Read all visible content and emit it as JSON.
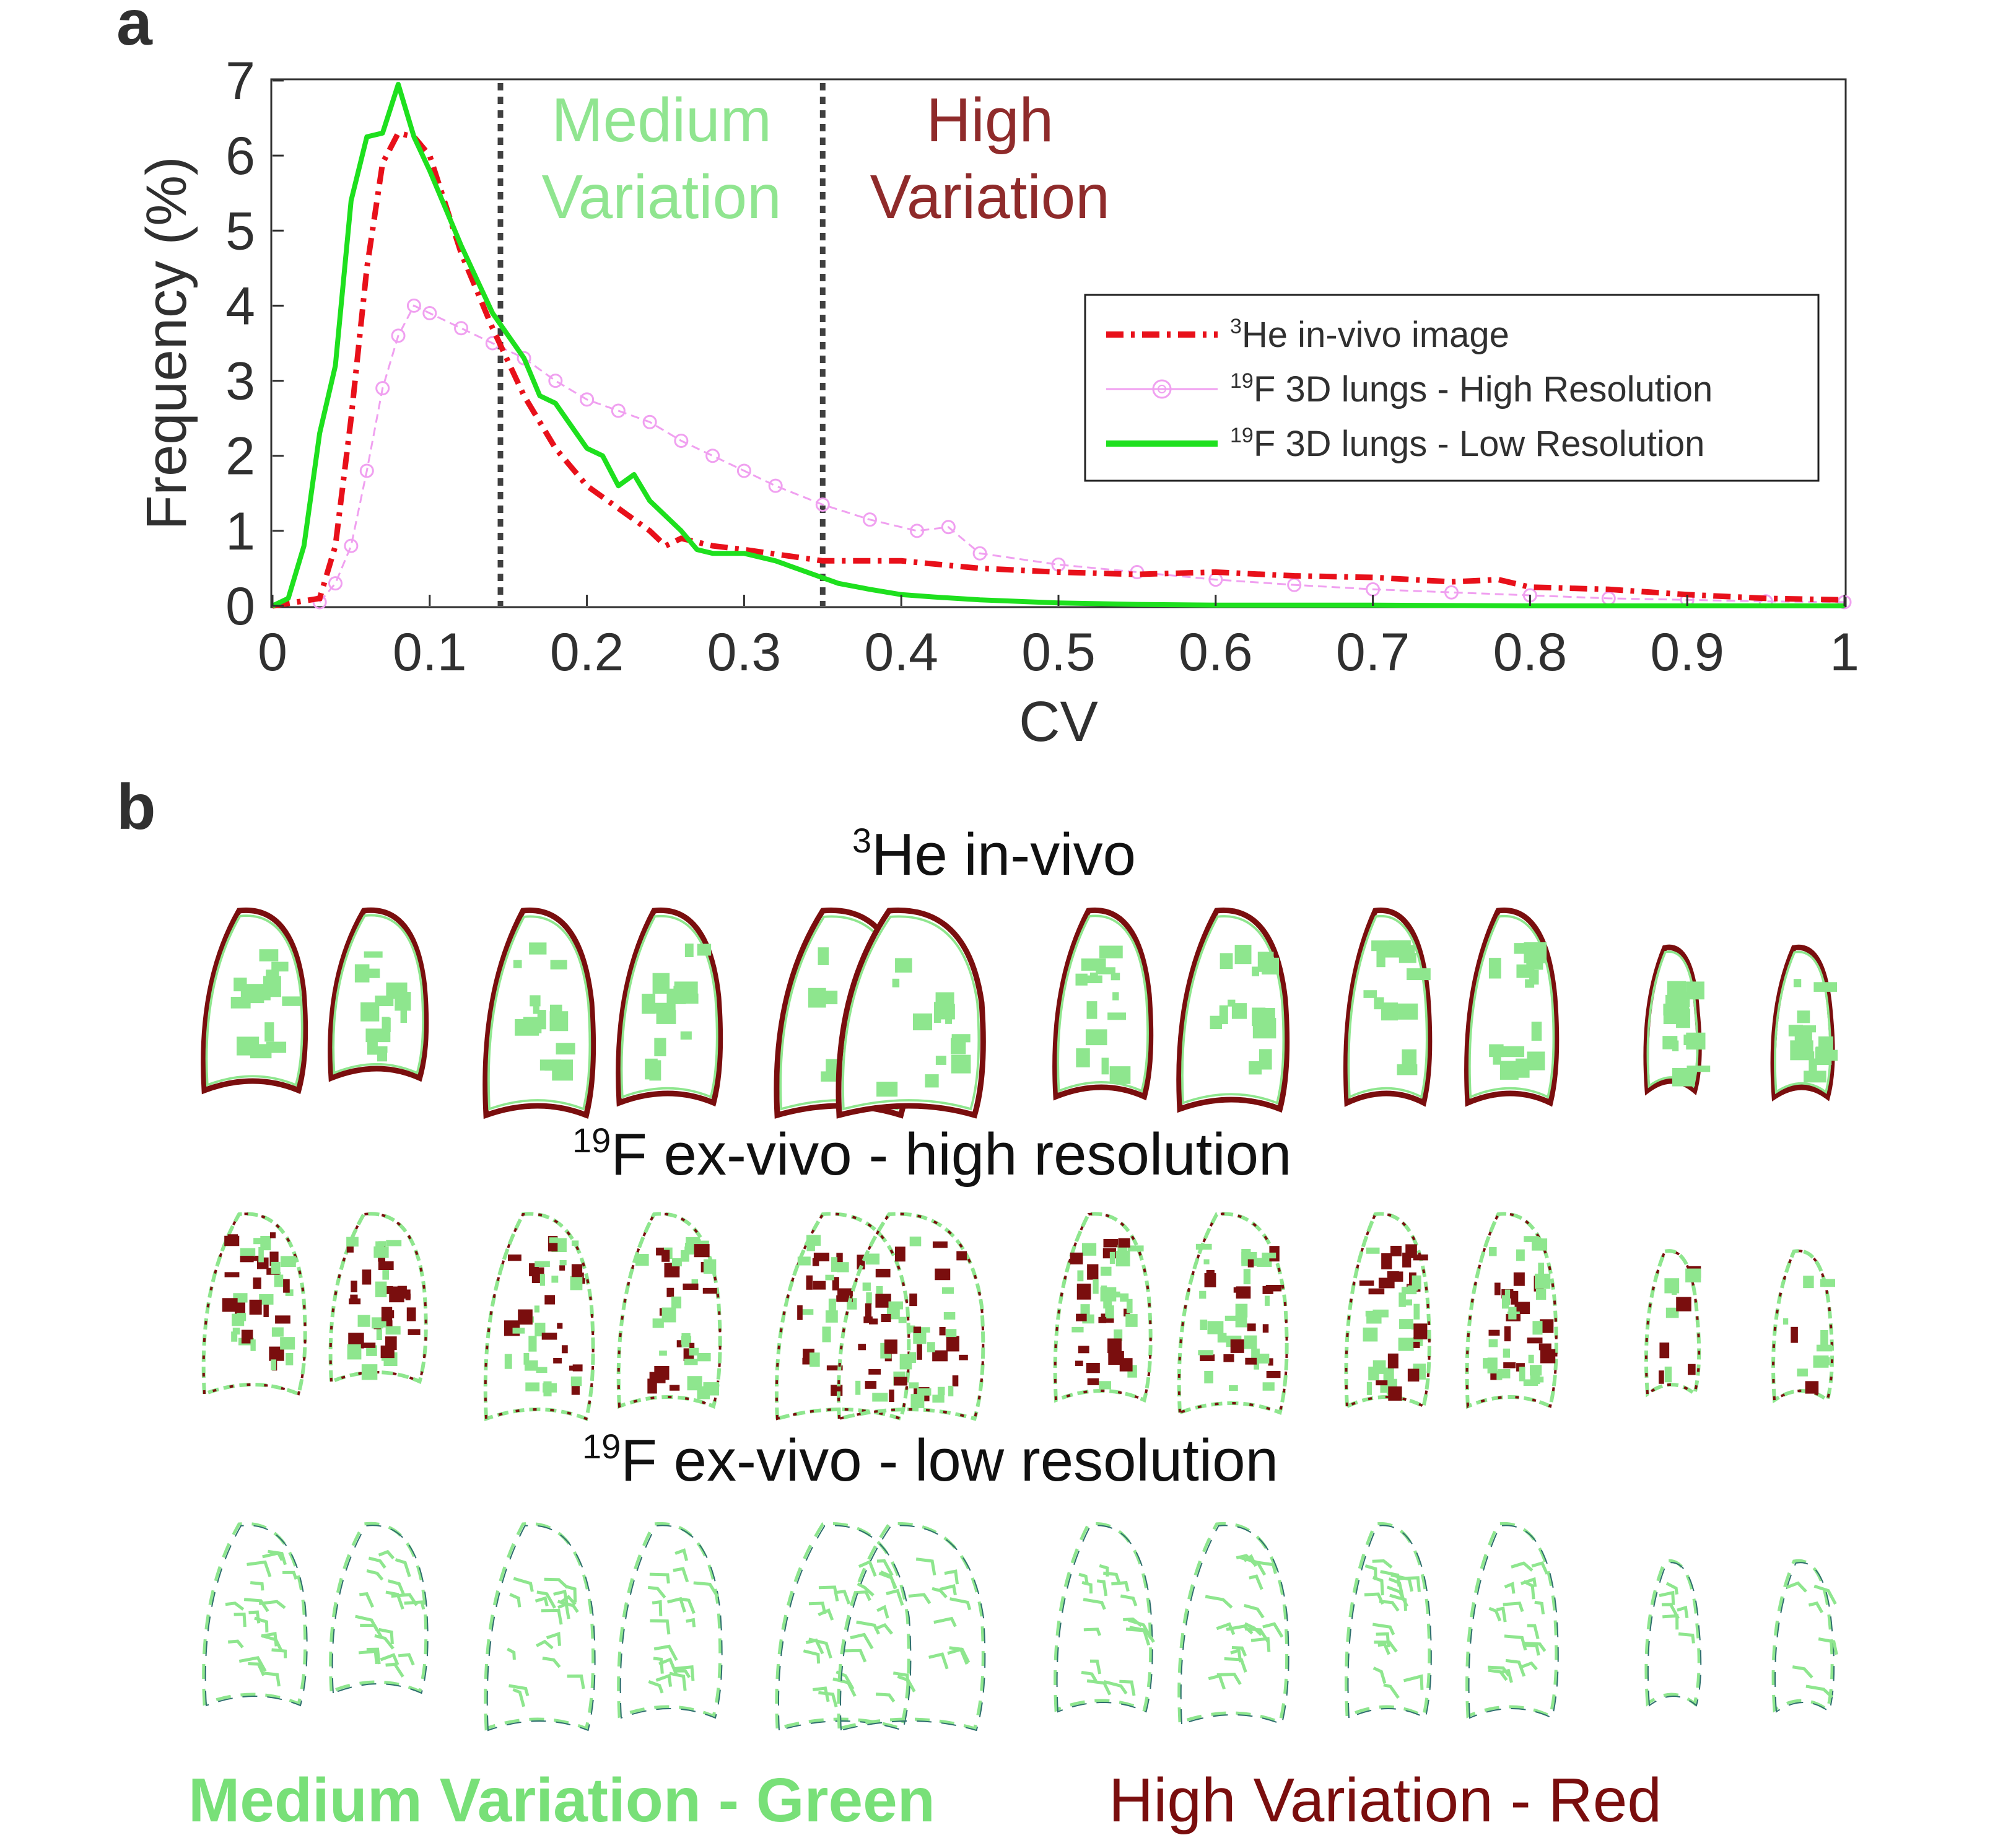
{
  "panel_a": {
    "letter": "a"
  },
  "panel_b": {
    "letter": "b",
    "rows": [
      {
        "sup": "3",
        "title": "He in-vivo"
      },
      {
        "sup": "19",
        "title": "F ex-vivo - high resolution"
      },
      {
        "sup": "19",
        "title": "F ex-vivo - low resolution"
      }
    ],
    "footer": {
      "green_text": "Medium Variation - Green",
      "red_text": "High Variation - Red",
      "green_color": "#78e078",
      "red_color": "#7a0e0e"
    }
  },
  "chart_data": {
    "type": "line",
    "xlabel": "CV",
    "ylabel": "Frequency (%)",
    "xlim": [
      0,
      1
    ],
    "ylim": [
      0,
      7
    ],
    "xticks": [
      "0",
      "0.1",
      "0.2",
      "0.3",
      "0.4",
      "0.5",
      "0.6",
      "0.7",
      "0.8",
      "0.9",
      "1"
    ],
    "yticks": [
      "0",
      "1",
      "2",
      "3",
      "4",
      "5",
      "6",
      "7"
    ],
    "grid": false,
    "legend_position": "right",
    "thresholds": [
      {
        "x": 0.145,
        "style": "dotted"
      },
      {
        "x": 0.35,
        "style": "dotted"
      }
    ],
    "regions": [
      {
        "line1": "Medium",
        "line2": "Variation",
        "color": "#90e590"
      },
      {
        "line1": "High",
        "line2": "Variation",
        "color": "#8f2b2b"
      }
    ],
    "series": [
      {
        "name_sup": "3",
        "name": "He in-vivo image",
        "color": "#e8101a",
        "style": "dashdot",
        "x": [
          0,
          0.03,
          0.04,
          0.05,
          0.06,
          0.07,
          0.08,
          0.09,
          0.1,
          0.12,
          0.14,
          0.16,
          0.18,
          0.2,
          0.22,
          0.24,
          0.25,
          0.26,
          0.28,
          0.3,
          0.35,
          0.4,
          0.45,
          0.5,
          0.55,
          0.6,
          0.65,
          0.7,
          0.75,
          0.78,
          0.8,
          0.85,
          0.9,
          0.95,
          1.0
        ],
        "values": [
          0,
          0.1,
          0.8,
          2.5,
          4.5,
          5.9,
          6.3,
          6.25,
          6.0,
          4.7,
          3.7,
          2.8,
          2.1,
          1.6,
          1.3,
          1.0,
          0.8,
          0.9,
          0.8,
          0.75,
          0.6,
          0.6,
          0.5,
          0.45,
          0.42,
          0.45,
          0.4,
          0.38,
          0.32,
          0.35,
          0.25,
          0.22,
          0.15,
          0.1,
          0.08
        ]
      },
      {
        "name_sup": "19",
        "name": "F 3D lungs - High Resolution",
        "color": "#f0a0f0",
        "style": "circles",
        "x": [
          0.03,
          0.04,
          0.05,
          0.06,
          0.07,
          0.08,
          0.09,
          0.1,
          0.12,
          0.14,
          0.16,
          0.18,
          0.2,
          0.22,
          0.24,
          0.26,
          0.28,
          0.3,
          0.32,
          0.35,
          0.38,
          0.41,
          0.43,
          0.45,
          0.5,
          0.55,
          0.6,
          0.65,
          0.7,
          0.75,
          0.8,
          0.85,
          0.9,
          0.95,
          1.0
        ],
        "values": [
          0.05,
          0.3,
          0.8,
          1.8,
          2.9,
          3.6,
          4.0,
          3.9,
          3.7,
          3.5,
          3.3,
          3.0,
          2.75,
          2.6,
          2.45,
          2.2,
          2.0,
          1.8,
          1.6,
          1.35,
          1.15,
          1.0,
          1.05,
          0.7,
          0.55,
          0.45,
          0.35,
          0.28,
          0.22,
          0.18,
          0.14,
          0.1,
          0.08,
          0.06,
          0.05
        ]
      },
      {
        "name_sup": "19",
        "name": "F 3D lungs - Low Resolution",
        "color": "#1ee01e",
        "style": "solid",
        "x": [
          0,
          0.01,
          0.02,
          0.03,
          0.04,
          0.05,
          0.06,
          0.07,
          0.08,
          0.09,
          0.1,
          0.11,
          0.12,
          0.13,
          0.14,
          0.15,
          0.16,
          0.17,
          0.18,
          0.19,
          0.2,
          0.21,
          0.22,
          0.23,
          0.24,
          0.25,
          0.26,
          0.27,
          0.28,
          0.3,
          0.32,
          0.34,
          0.36,
          0.38,
          0.4,
          0.42,
          0.45,
          0.5,
          0.55,
          0.6,
          0.7,
          0.8,
          0.9,
          1.0
        ],
        "values": [
          0,
          0.1,
          0.8,
          2.3,
          3.2,
          5.4,
          6.25,
          6.3,
          6.95,
          6.25,
          5.8,
          5.3,
          4.8,
          4.35,
          3.9,
          3.6,
          3.3,
          2.8,
          2.7,
          2.4,
          2.1,
          2.0,
          1.6,
          1.75,
          1.4,
          1.2,
          1.0,
          0.75,
          0.7,
          0.7,
          0.6,
          0.45,
          0.3,
          0.22,
          0.15,
          0.12,
          0.08,
          0.04,
          0.02,
          0.01,
          0.01,
          0.0,
          0.0,
          0.0
        ]
      }
    ]
  }
}
